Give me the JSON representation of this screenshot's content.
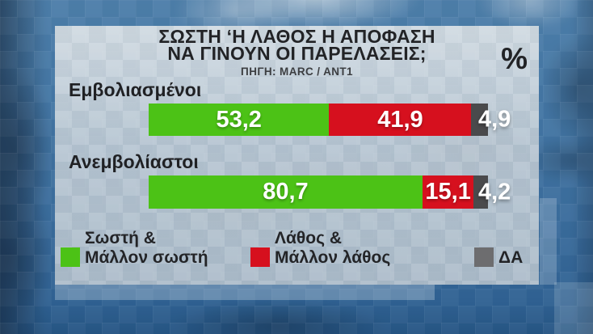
{
  "header": {
    "title_line1": "ΣΩΣΤΗ ‘Η ΛΑΘΟΣ Η ΑΠΟΦΑΣΗ",
    "title_line2": "ΝΑ ΓΙΝΟΥΝ ΟΙ ΠΑΡΕΛΑΣΕΙΣ;",
    "source": "ΠΗΓΗ: MARC / ANT1",
    "unit_symbol": "%"
  },
  "chart_data": {
    "type": "bar",
    "orientation": "horizontal",
    "stacked": true,
    "unit": "%",
    "title": "ΣΩΣΤΗ ‘Η ΛΑΘΟΣ Η ΑΠΟΦΑΣΗ ΝΑ ΓΙΝΟΥΝ ΟΙ ΠΑΡΕΛΑΣΕΙΣ;",
    "source": "ΠΗΓΗ: MARC / ANT1",
    "categories": [
      "Εμβολιασμένοι",
      "Ανεμβολίαστοι"
    ],
    "series": [
      {
        "name": "Σωστή & Μάλλον σωστή",
        "color": "#4cc216",
        "values": [
          53.2,
          80.7
        ],
        "display": [
          "53,2",
          "80,7"
        ]
      },
      {
        "name": "Λάθος & Μάλλον λάθος",
        "color": "#d6101e",
        "values": [
          41.9,
          15.1
        ],
        "display": [
          "41,9",
          "15,1"
        ]
      },
      {
        "name": "ΔΑ",
        "color": "#4a4a4c",
        "values": [
          4.9,
          4.2
        ],
        "display": [
          "4,9",
          "4,2"
        ]
      }
    ],
    "xlim": [
      0,
      100
    ],
    "grid": false,
    "legend_position": "bottom"
  },
  "legend": {
    "items": [
      {
        "line1": "Σωστή &",
        "line2": "Μάλλον σωστή",
        "swatch_color": "#4cc216"
      },
      {
        "line1": "Λάθος &",
        "line2": "Μάλλον λάθος",
        "swatch_color": "#d6101e"
      },
      {
        "line1": "",
        "line2": "ΔΑ",
        "swatch_color": "#6d6d6f"
      }
    ]
  }
}
